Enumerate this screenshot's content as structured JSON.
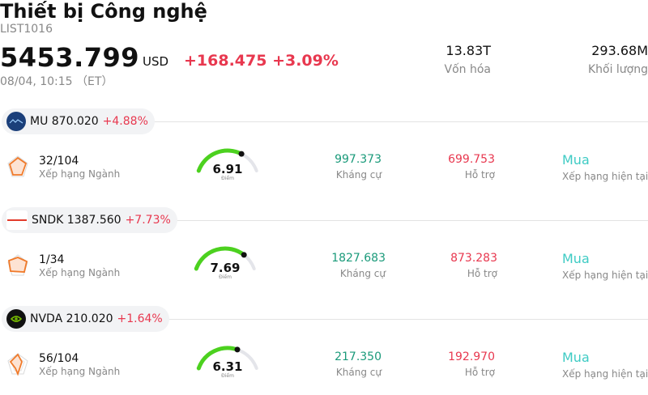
{
  "header": {
    "title": "Thiết bị Công nghệ",
    "code": "LIST1016",
    "price": "5453.799",
    "currency": "USD",
    "change": "+168.475 +3.09%",
    "time": "08/04, 10:15 （ET）",
    "market_cap_value": "13.83T",
    "market_cap_label": "Vốn hóa",
    "volume_value": "293.68M",
    "volume_label": "Khối lượng"
  },
  "colors": {
    "up": "#e8384f",
    "resistance": "#1a9a7a",
    "buy": "#3ecbc4",
    "gauge_fill": "#4cd11f",
    "gauge_track": "#e4e5ea"
  },
  "stocks": [
    {
      "ticker_price": "MU 870.020",
      "change": "+4.88%",
      "logo_icon": "micron-logo-icon",
      "rank": "32/104",
      "rank_label": "Xếp hạng Ngành",
      "score": "6.91",
      "score_value": 6.91,
      "score_label": "Điểm",
      "resistance": "997.373",
      "resistance_label": "Kháng cự",
      "support": "699.753",
      "support_label": "Hỗ trợ",
      "rating": "Mua",
      "rating_label": "Xếp hạng hiện tại"
    },
    {
      "ticker_price": "SNDK 1387.560",
      "change": "+7.73%",
      "logo_icon": "sandisk-logo-icon",
      "rank": "1/34",
      "rank_label": "Xếp hạng Ngành",
      "score": "7.69",
      "score_value": 7.69,
      "score_label": "Điểm",
      "resistance": "1827.683",
      "resistance_label": "Kháng cự",
      "support": "873.283",
      "support_label": "Hỗ trợ",
      "rating": "Mua",
      "rating_label": "Xếp hạng hiện tại"
    },
    {
      "ticker_price": "NVDA 210.020",
      "change": "+1.64%",
      "logo_icon": "nvidia-logo-icon",
      "rank": "56/104",
      "rank_label": "Xếp hạng Ngành",
      "score": "6.31",
      "score_value": 6.31,
      "score_label": "Điểm",
      "resistance": "217.350",
      "resistance_label": "Kháng cự",
      "support": "192.970",
      "support_label": "Hỗ trợ",
      "rating": "Mua",
      "rating_label": "Xếp hạng hiện tại"
    }
  ]
}
